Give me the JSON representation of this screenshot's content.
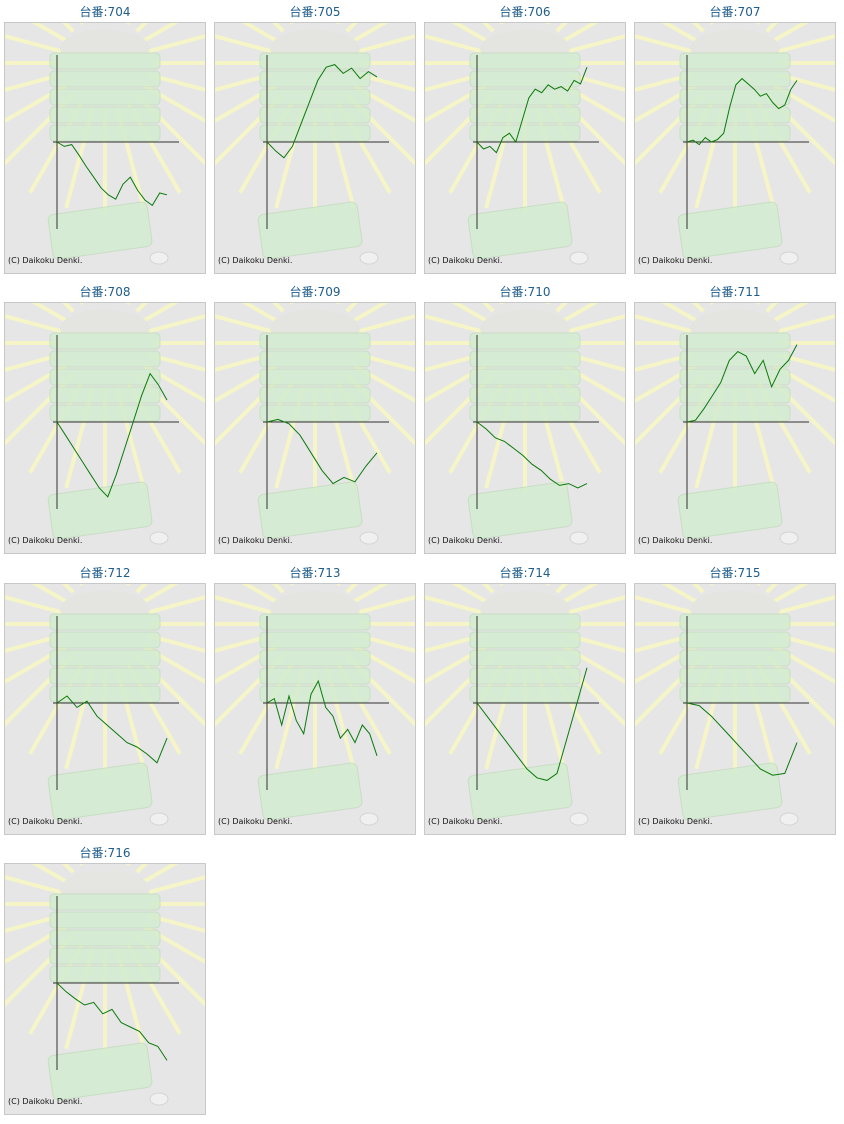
{
  "colors": {
    "title_text": "#1f5d8c",
    "panel_bg": "#e6e6e6",
    "panel_border": "#c8c8c8",
    "axis": "#333333",
    "line": "#0a7a0a",
    "sunray": "#f5f5c8",
    "machine": "#d4ecd0"
  },
  "chart_data": [
    {
      "type": "line",
      "title": "台番:704",
      "copyright": "(C) Daikoku Denki.",
      "icon": "slot-machine-background",
      "y": [
        0,
        -5,
        -3,
        -15,
        -28,
        -40,
        -52,
        -60,
        -65,
        -48,
        -40,
        -55,
        -66,
        -72,
        -58,
        -60
      ]
    },
    {
      "type": "line",
      "title": "台番:705",
      "copyright": "(C) Daikoku Denki.",
      "icon": "slot-machine-background",
      "y": [
        0,
        -10,
        -18,
        -5,
        20,
        45,
        70,
        85,
        88,
        78,
        84,
        72,
        80,
        74
      ]
    },
    {
      "type": "line",
      "title": "台番:706",
      "copyright": "(C) Daikoku Denki.",
      "icon": "slot-machine-background",
      "y": [
        0,
        -8,
        -5,
        -12,
        5,
        10,
        0,
        25,
        50,
        60,
        56,
        65,
        60,
        63,
        58,
        70,
        66,
        85
      ]
    },
    {
      "type": "line",
      "title": "台番:707",
      "copyright": "(C) Daikoku Denki.",
      "icon": "slot-machine-background",
      "y": [
        0,
        2,
        -3,
        5,
        0,
        3,
        10,
        40,
        65,
        72,
        66,
        60,
        52,
        55,
        45,
        38,
        42,
        60,
        70
      ]
    },
    {
      "type": "line",
      "title": "台番:708",
      "copyright": "(C) Daikoku Denki.",
      "icon": "slot-machine-background",
      "y": [
        0,
        -15,
        -30,
        -45,
        -60,
        -75,
        -85,
        -60,
        -30,
        0,
        30,
        55,
        42,
        25
      ]
    },
    {
      "type": "line",
      "title": "台番:709",
      "copyright": "(C) Daikoku Denki.",
      "icon": "slot-machine-background",
      "y": [
        0,
        3,
        -2,
        -15,
        -35,
        -55,
        -70,
        -63,
        -68,
        -50,
        -35
      ]
    },
    {
      "type": "line",
      "title": "台番:710",
      "copyright": "(C) Daikoku Denki.",
      "icon": "slot-machine-background",
      "y": [
        0,
        -8,
        -18,
        -22,
        -30,
        -38,
        -48,
        -55,
        -65,
        -72,
        -70,
        -75,
        -70
      ]
    },
    {
      "type": "line",
      "title": "台番:711",
      "copyright": "(C) Daikoku Denki.",
      "icon": "slot-machine-background",
      "y": [
        0,
        2,
        15,
        30,
        45,
        70,
        80,
        75,
        55,
        70,
        40,
        60,
        70,
        88
      ]
    },
    {
      "type": "line",
      "title": "台番:712",
      "copyright": "(C) Daikoku Denki.",
      "icon": "slot-machine-background",
      "y": [
        0,
        8,
        -5,
        2,
        -15,
        -25,
        -35,
        -45,
        -50,
        -58,
        -68,
        -40
      ]
    },
    {
      "type": "line",
      "title": "台番:713",
      "copyright": "(C) Daikoku Denki.",
      "icon": "slot-machine-background",
      "y": [
        0,
        5,
        -25,
        8,
        -20,
        -35,
        10,
        25,
        -5,
        -15,
        -40,
        -30,
        -45,
        -25,
        -35,
        -60
      ]
    },
    {
      "type": "line",
      "title": "台番:714",
      "copyright": "(C) Daikoku Denki.",
      "icon": "slot-machine-background",
      "y": [
        0,
        -15,
        -30,
        -45,
        -60,
        -75,
        -85,
        -88,
        -80,
        -40,
        0,
        40
      ]
    },
    {
      "type": "line",
      "title": "台番:715",
      "copyright": "(C) Daikoku Denki.",
      "icon": "slot-machine-background",
      "y": [
        0,
        -3,
        -15,
        -30,
        -45,
        -60,
        -75,
        -82,
        -80,
        -45
      ]
    },
    {
      "type": "line",
      "title": "台番:716",
      "copyright": "(C) Daikoku Denki.",
      "icon": "slot-machine-background",
      "y": [
        0,
        -10,
        -18,
        -25,
        -22,
        -35,
        -30,
        -45,
        -50,
        -55,
        -68,
        -72,
        -88
      ]
    }
  ]
}
